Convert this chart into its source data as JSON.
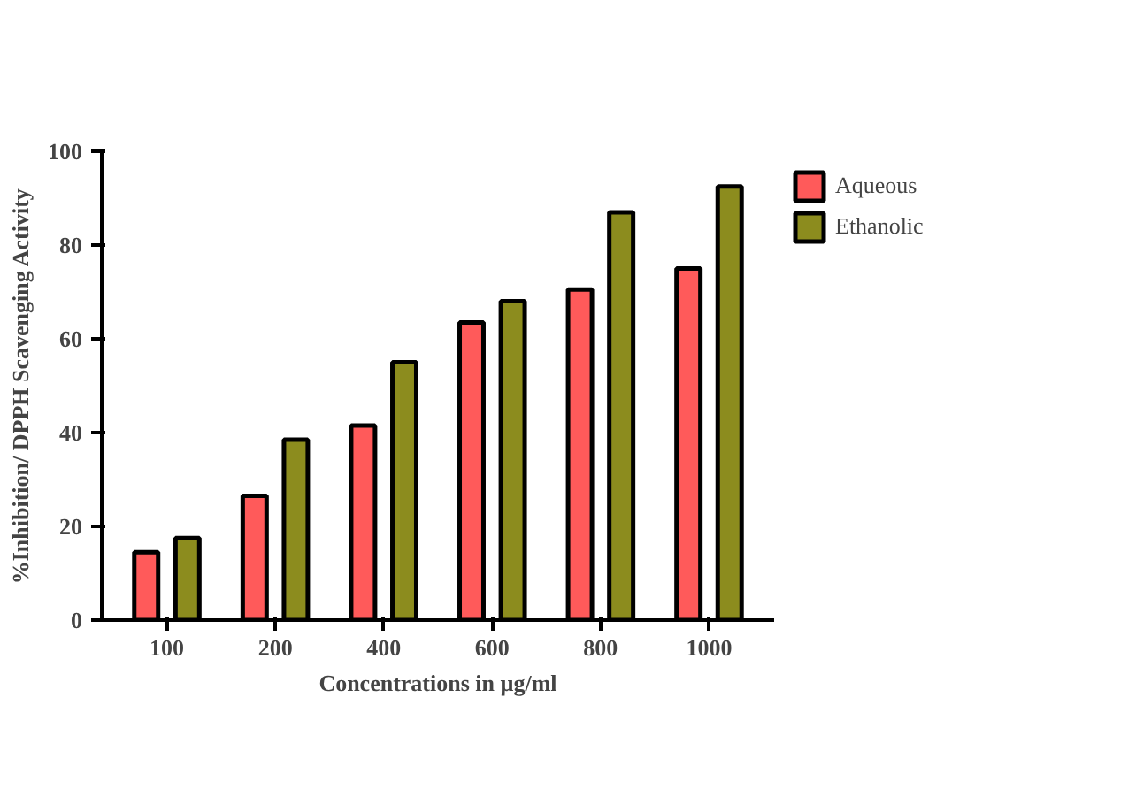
{
  "chart_data": {
    "type": "bar",
    "xlabel": "Concentrations in µg/ml",
    "ylabel": "%Inhibition/ DPPH Scavenging Activity",
    "categories": [
      "100",
      "200",
      "400",
      "600",
      "800",
      "1000"
    ],
    "series": [
      {
        "name": "Aqueous",
        "color": "#ff5a5a",
        "values": [
          14.5,
          26.5,
          41.5,
          63.5,
          70.5,
          75
        ]
      },
      {
        "name": "Ethanolic",
        "color": "#8c8c1e",
        "values": [
          17.5,
          38.5,
          55,
          68,
          87,
          92.5
        ]
      }
    ],
    "ylim": [
      0,
      100
    ],
    "yticks": [
      0,
      20,
      40,
      60,
      80,
      100
    ],
    "grid": false,
    "legend": "right"
  }
}
